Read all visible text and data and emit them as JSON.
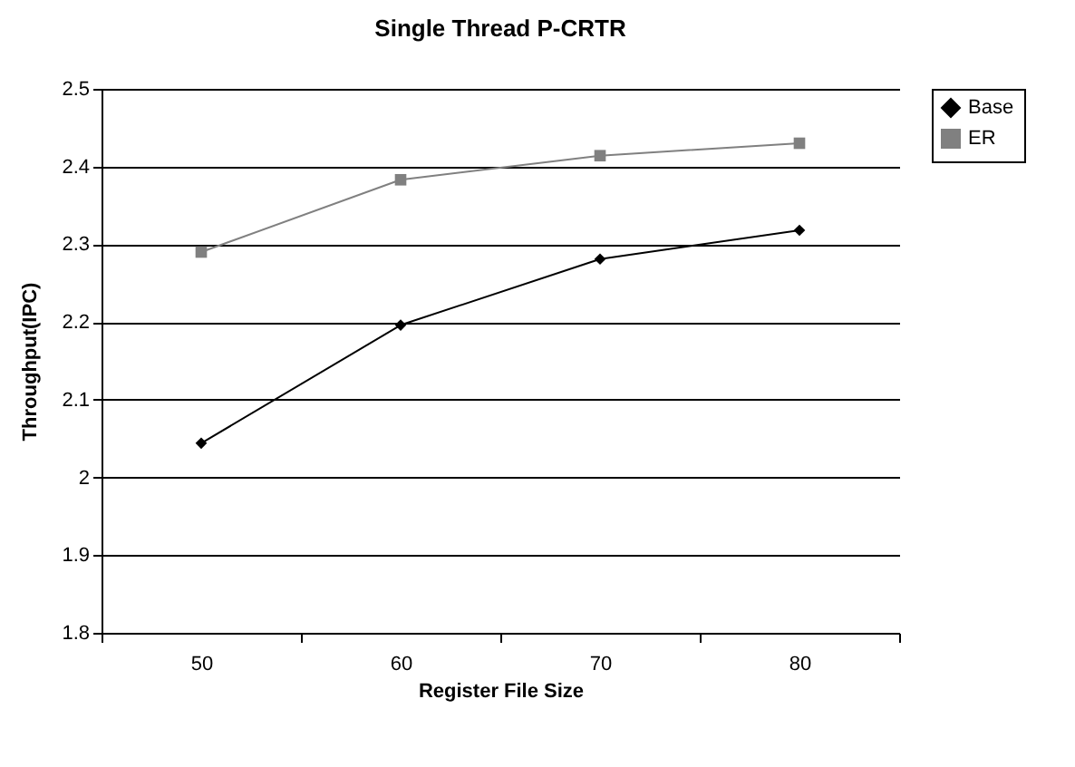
{
  "chart_data": {
    "type": "line",
    "title": "Single Thread P-CRTR",
    "xlabel": "Register File Size",
    "ylabel": "Throughput(IPC)",
    "categories": [
      "50",
      "60",
      "70",
      "80"
    ],
    "series": [
      {
        "name": "Base",
        "color": "#000000",
        "marker": "diamond",
        "values": [
          2.044,
          2.196,
          2.281,
          2.318
        ]
      },
      {
        "name": "ER",
        "color": "#808080",
        "marker": "square",
        "values": [
          2.29,
          2.383,
          2.414,
          2.43
        ]
      }
    ],
    "ylim": [
      1.8,
      2.5
    ],
    "yticks": [
      1.8,
      1.9,
      2,
      2.1,
      2.2,
      2.3,
      2.4,
      2.5
    ],
    "grid": "y",
    "legend": "right",
    "line_style": "solid"
  }
}
